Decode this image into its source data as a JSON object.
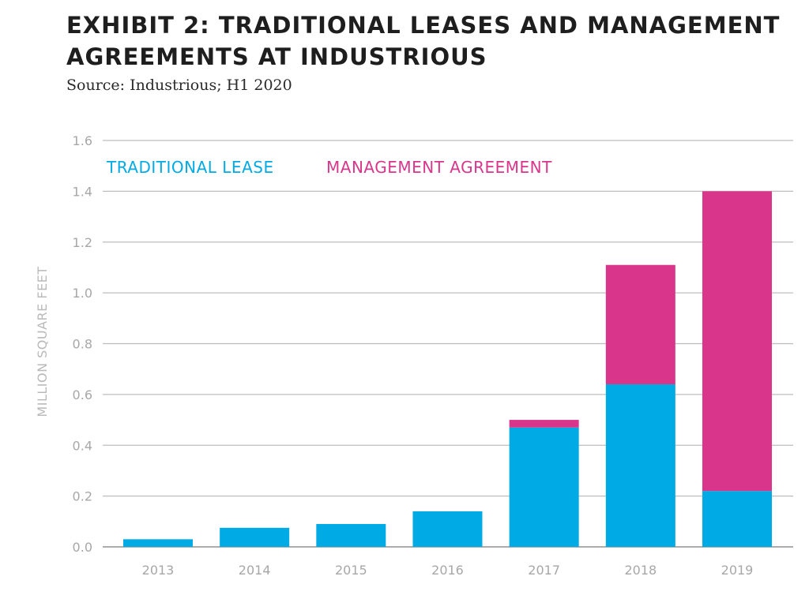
{
  "title": "EXHIBIT 2: TRADITIONAL LEASES AND MANAGEMENT AGREEMENTS AT INDUSTRIOUS",
  "subtitle": "Source: Industrious; H1 2020",
  "chart_data": {
    "type": "bar",
    "stacked": true,
    "title": "EXHIBIT 2: TRADITIONAL LEASES AND MANAGEMENT AGREEMENTS AT INDUSTRIOUS",
    "subtitle": "Source: Industrious; H1 2020",
    "categories": [
      "2013",
      "2014",
      "2015",
      "2016",
      "2017",
      "2018",
      "2019"
    ],
    "series": [
      {
        "name": "TRADITIONAL LEASE",
        "color": "#00aae4",
        "values": [
          0.03,
          0.075,
          0.09,
          0.14,
          0.47,
          0.64,
          0.22
        ]
      },
      {
        "name": "MANAGEMENT AGREEMENT",
        "color": "#d9368b",
        "values": [
          0,
          0,
          0,
          0,
          0.03,
          0.47,
          1.18
        ]
      }
    ],
    "xlabel": "",
    "ylabel": "MILLION SQUARE FEET",
    "ylim": [
      0,
      1.6
    ],
    "yticks": [
      "0.0",
      "0.2",
      "0.4",
      "0.6",
      "0.8",
      "1.0",
      "1.2",
      "1.4",
      "1.6"
    ],
    "grid": true,
    "legend_position": "top-left"
  }
}
